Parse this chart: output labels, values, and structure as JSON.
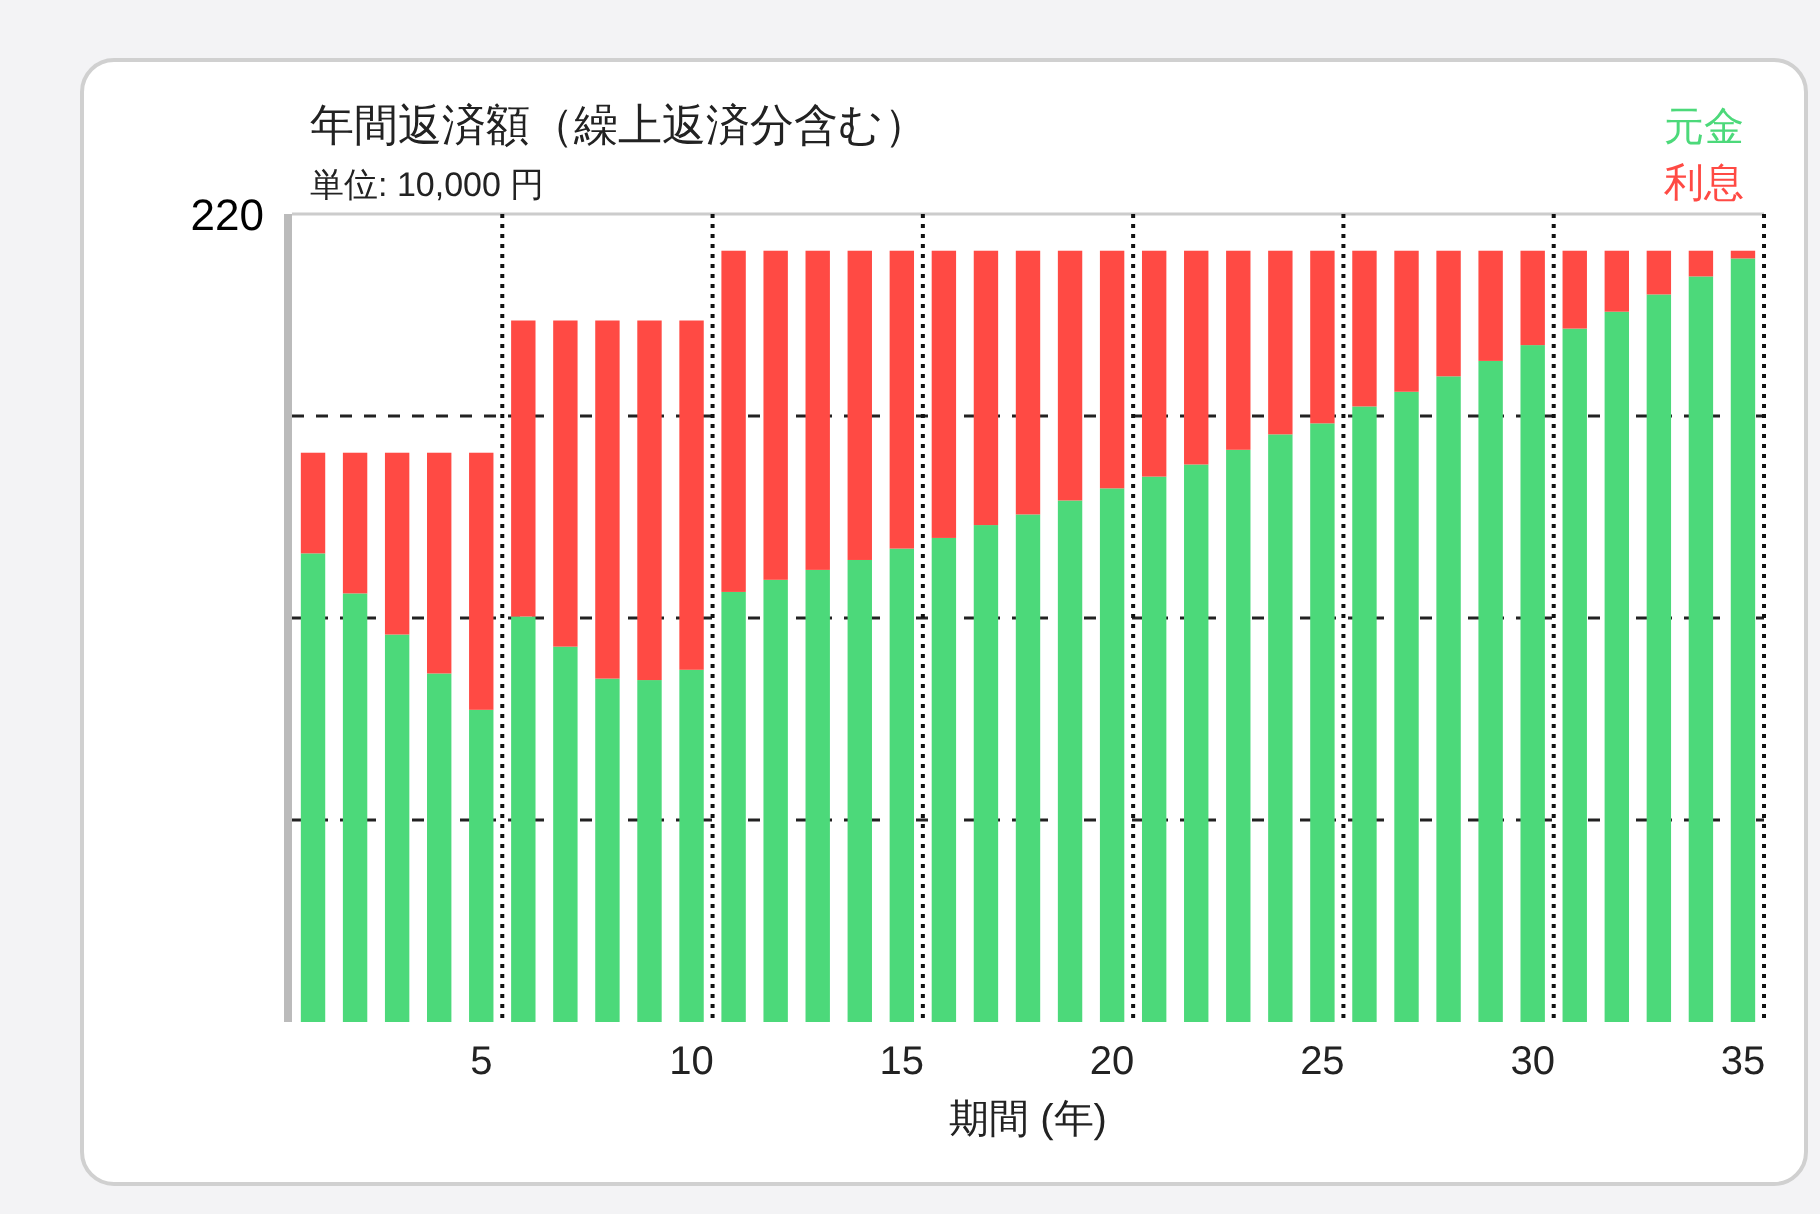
{
  "chart_data": {
    "type": "bar",
    "title": "年間返済額（繰上返済分含む）",
    "subtitle": "単位: 10,000 円",
    "xlabel": "期間 (年)",
    "stacked": true,
    "legend": "top right",
    "grid": "y",
    "line_style": "dashed",
    "x": [
      1,
      2,
      3,
      4,
      5,
      6,
      7,
      8,
      9,
      10,
      11,
      12,
      13,
      14,
      15,
      16,
      17,
      18,
      19,
      20,
      21,
      22,
      23,
      24,
      25,
      26,
      27,
      28,
      29,
      30,
      31,
      32,
      33,
      34,
      35
    ],
    "xlim": [
      0.5,
      35.5
    ],
    "xticks": [
      5,
      10,
      15,
      20,
      25,
      30,
      35
    ],
    "ylim": [
      0,
      220
    ],
    "yticks": [
      {
        "value": 55,
        "label": null
      },
      {
        "value": 110,
        "label": null
      },
      {
        "value": 165,
        "label": null
      },
      220
    ],
    "series": [
      {
        "name": "元金",
        "color": "#4cd97a",
        "values": [
          127.6,
          116.7,
          105.5,
          94.9,
          85.0,
          110.4,
          102.2,
          93.5,
          93.1,
          95.9,
          117.1,
          120.4,
          123.1,
          125.8,
          128.9,
          131.8,
          135.3,
          138.2,
          142.0,
          145.3,
          148.5,
          151.8,
          155.8,
          160.0,
          163.0,
          167.6,
          171.6,
          175.8,
          180.0,
          184.3,
          188.8,
          193.4,
          198.1,
          203.0,
          207.9
        ]
      },
      {
        "name": "利息",
        "color": "#ff4a44",
        "values": [
          27.4,
          38.3,
          49.5,
          60.1,
          70.0,
          80.6,
          88.8,
          97.5,
          97.9,
          95.1,
          92.9,
          89.6,
          86.9,
          84.2,
          81.1,
          78.2,
          74.7,
          71.8,
          68.0,
          64.7,
          61.5,
          58.2,
          54.2,
          50.0,
          47.0,
          42.4,
          38.4,
          34.2,
          30.0,
          25.7,
          21.2,
          16.6,
          11.9,
          7.0,
          2.1
        ]
      }
    ],
    "ref_lines": [
      {
        "axis": "x",
        "value": 5.5,
        "line_style": "dotted",
        "color": "#111111"
      },
      {
        "axis": "x",
        "value": 10.5,
        "line_style": "dotted",
        "color": "#111111"
      },
      {
        "axis": "x",
        "value": 15.5,
        "line_style": "dotted",
        "color": "#111111"
      },
      {
        "axis": "x",
        "value": 20.5,
        "line_style": "dotted",
        "color": "#111111"
      },
      {
        "axis": "x",
        "value": 25.5,
        "line_style": "dotted",
        "color": "#111111"
      },
      {
        "axis": "x",
        "value": 30.5,
        "line_style": "dotted",
        "color": "#111111"
      },
      {
        "axis": "x",
        "value": 35.5,
        "line_style": "dotted",
        "color": "#111111"
      }
    ]
  }
}
